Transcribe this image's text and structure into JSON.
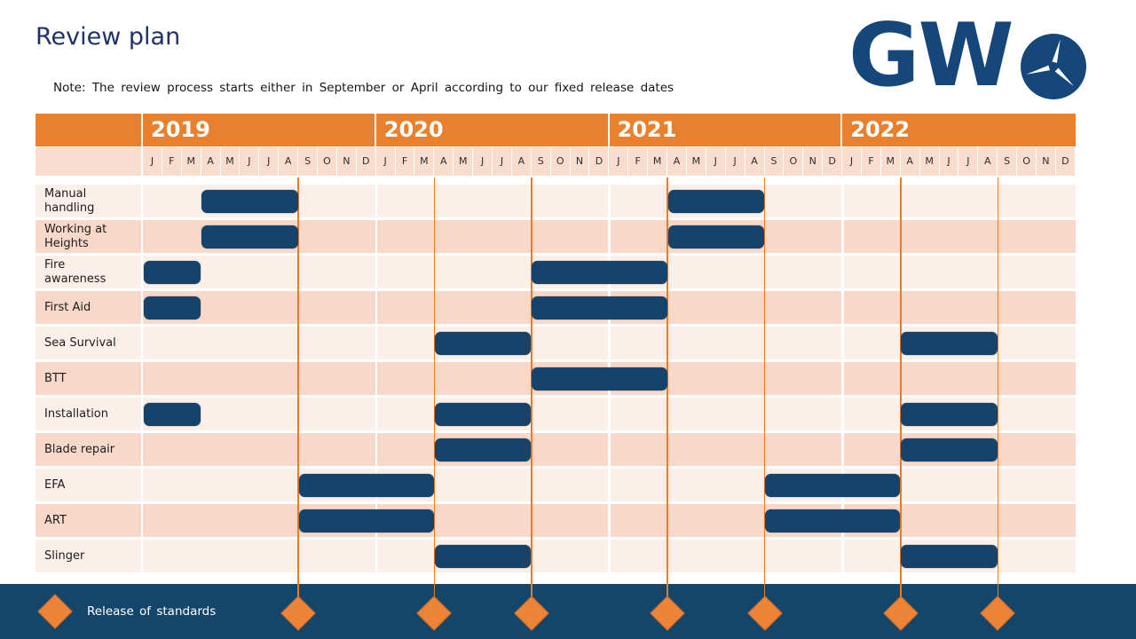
{
  "title": "Review plan",
  "note": "Note: The review process starts either in September or April according to our fixed release dates",
  "logo": {
    "text": "GW",
    "icon": "wind-turbine-icon"
  },
  "colors": {
    "orange": "#E8812F",
    "line_orange": "#E87D28",
    "diamond_orange": "#EC8336",
    "bar_navy": "#14436B",
    "footer_navy": "#14466B",
    "month_band": "#F8DCCD",
    "row_light": "#FBEFE9",
    "row_dark": "#F8D9C9",
    "title_navy": "#1F3268",
    "logo_navy": "#16477B"
  },
  "chart_data": {
    "type": "gantt",
    "timeline_start": "2019-01",
    "timeline_end": "2022-12",
    "unit": "months",
    "years": [
      "2019",
      "2020",
      "2021",
      "2022"
    ],
    "month_labels": [
      "J",
      "F",
      "M",
      "A",
      "M",
      "J",
      "J",
      "A",
      "S",
      "O",
      "N",
      "D"
    ],
    "rows": [
      {
        "label": "Manual handling",
        "bars": [
          {
            "start_index": 3,
            "months": 5,
            "period": "Apr 2019 – Aug 2019"
          },
          {
            "start_index": 27,
            "months": 5,
            "period": "Apr 2021 – Aug 2021"
          }
        ]
      },
      {
        "label": "Working at Heights",
        "bars": [
          {
            "start_index": 3,
            "months": 5,
            "period": "Apr 2019 – Aug 2019"
          },
          {
            "start_index": 27,
            "months": 5,
            "period": "Apr 2021 – Aug 2021"
          }
        ]
      },
      {
        "label": "Fire awareness",
        "bars": [
          {
            "start_index": 0,
            "months": 3,
            "period": "Jan 2019 – Mar 2019"
          },
          {
            "start_index": 20,
            "months": 7,
            "period": "Sep 2020 – Mar 2021"
          }
        ]
      },
      {
        "label": "First Aid",
        "bars": [
          {
            "start_index": 0,
            "months": 3,
            "period": "Jan 2019 – Mar 2019"
          },
          {
            "start_index": 20,
            "months": 7,
            "period": "Sep 2020 – Mar 2021"
          }
        ]
      },
      {
        "label": "Sea Survival",
        "bars": [
          {
            "start_index": 15,
            "months": 5,
            "period": "Apr 2020 – Aug 2020"
          },
          {
            "start_index": 39,
            "months": 5,
            "period": "Apr 2022 – Aug 2022"
          }
        ]
      },
      {
        "label": "BTT",
        "bars": [
          {
            "start_index": 20,
            "months": 7,
            "period": "Sep 2020 – Mar 2021"
          }
        ]
      },
      {
        "label": "Installation",
        "bars": [
          {
            "start_index": 0,
            "months": 3,
            "period": "Jan 2019 – Mar 2019"
          },
          {
            "start_index": 15,
            "months": 5,
            "period": "Apr 2020 – Aug 2020"
          },
          {
            "start_index": 39,
            "months": 5,
            "period": "Apr 2022 – Aug 2022"
          }
        ]
      },
      {
        "label": "Blade repair",
        "bars": [
          {
            "start_index": 15,
            "months": 5,
            "period": "Apr 2020 – Aug 2020"
          },
          {
            "start_index": 39,
            "months": 5,
            "period": "Apr 2022 – Aug 2022"
          }
        ]
      },
      {
        "label": "EFA",
        "bars": [
          {
            "start_index": 8,
            "months": 7,
            "period": "Sep 2019 – Mar 2020"
          },
          {
            "start_index": 32,
            "months": 7,
            "period": "Sep 2021 – Mar 2022"
          }
        ]
      },
      {
        "label": "ART",
        "bars": [
          {
            "start_index": 8,
            "months": 7,
            "period": "Sep 2019 – Mar 2020"
          },
          {
            "start_index": 32,
            "months": 7,
            "period": "Sep 2021 – Mar 2022"
          }
        ]
      },
      {
        "label": "Slinger",
        "bars": [
          {
            "start_index": 15,
            "months": 5,
            "period": "Apr 2020 – Aug 2020"
          },
          {
            "start_index": 39,
            "months": 5,
            "period": "Apr 2022 – Aug 2022"
          }
        ]
      }
    ],
    "release_lines": [
      {
        "month_index": 8,
        "date": "Sep 2019"
      },
      {
        "month_index": 15,
        "date": "Apr 2020"
      },
      {
        "month_index": 20,
        "date": "Sep 2020"
      },
      {
        "month_index": 27,
        "date": "Apr 2021"
      },
      {
        "month_index": 32,
        "date": "Sep 2021"
      },
      {
        "month_index": 39,
        "date": "Apr 2022"
      },
      {
        "month_index": 44,
        "date": "Sep 2022"
      }
    ],
    "legend": {
      "marker": "diamond",
      "label": "Release of standards"
    }
  }
}
